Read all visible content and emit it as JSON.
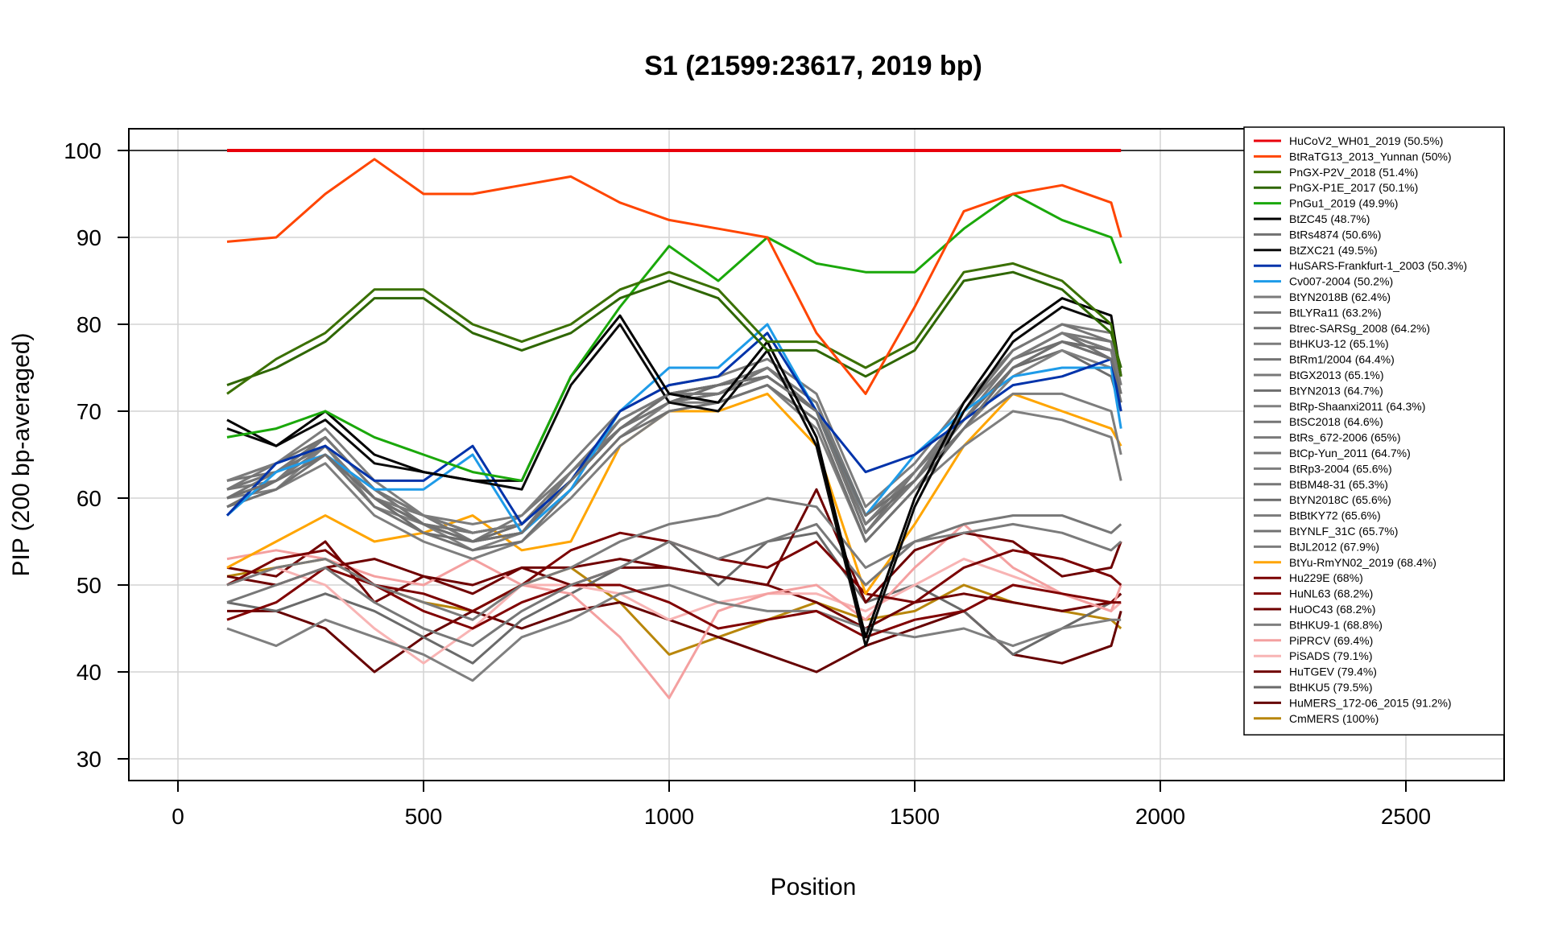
{
  "chart_data": {
    "type": "line",
    "title": "S1 (21599:23617, 2019 bp)",
    "xlabel": "Position",
    "ylabel": "PIP (200 bp-averaged)",
    "xlim": [
      -100,
      2700
    ],
    "ylim": [
      27.5,
      102.5
    ],
    "xticks": [
      0,
      500,
      1000,
      1500,
      2000,
      2500
    ],
    "yticks": [
      30,
      40,
      50,
      60,
      70,
      80,
      90,
      100
    ],
    "grid": true,
    "legend_position": "top-right",
    "reference_line": 100,
    "x": [
      100,
      200,
      300,
      400,
      500,
      600,
      700,
      800,
      900,
      1000,
      1100,
      1200,
      1300,
      1400,
      1500,
      1600,
      1700,
      1800,
      1900,
      1920
    ],
    "series": [
      {
        "name": "HuCoV2_WH01_2019 (50.5%)",
        "color": "#e8000b",
        "values": [
          100,
          100,
          100,
          100,
          100,
          100,
          100,
          100,
          100,
          100,
          100,
          100,
          100,
          100,
          100,
          100,
          100,
          100,
          100,
          100
        ]
      },
      {
        "name": "BtRaTG13_2013_Yunnan (50%)",
        "color": "#ff4500",
        "values": [
          89.5,
          90,
          95,
          99,
          95,
          95,
          96,
          97,
          94,
          92,
          91,
          90,
          79,
          72,
          82,
          93,
          95,
          96,
          94,
          90
        ]
      },
      {
        "name": "PnGX-P2V_2018 (51.4%)",
        "color": "#3a7000",
        "values": [
          72,
          76,
          79,
          84,
          84,
          80,
          78,
          80,
          84,
          86,
          84,
          78,
          78,
          75,
          78,
          86,
          87,
          85,
          80,
          74
        ]
      },
      {
        "name": "PnGX-P1E_2017 (50.1%)",
        "color": "#2e6600",
        "values": [
          73,
          75,
          78,
          83,
          83,
          79,
          77,
          79,
          83,
          85,
          83,
          77,
          77,
          74,
          77,
          85,
          86,
          84,
          79,
          75
        ]
      },
      {
        "name": "PnGu1_2019 (49.9%)",
        "color": "#1aa80a",
        "values": [
          67,
          68,
          70,
          67,
          65,
          63,
          62,
          74,
          82,
          89,
          85,
          90,
          87,
          86,
          86,
          91,
          95,
          92,
          90,
          87
        ]
      },
      {
        "name": "BtZC45 (48.7%)",
        "color": "#000000",
        "values": [
          69,
          66,
          70,
          65,
          63,
          62,
          62,
          74,
          81,
          72,
          71,
          78,
          67,
          44,
          60,
          71,
          79,
          83,
          81,
          74
        ]
      },
      {
        "name": "BtRs4874 (50.6%)",
        "color": "#707070",
        "values": [
          60,
          62,
          65,
          60,
          57,
          55,
          56,
          62,
          68,
          72,
          73,
          74,
          70,
          58,
          62,
          68,
          75,
          78,
          76,
          72
        ]
      },
      {
        "name": "BtZXC21 (49.5%)",
        "color": "#0a0a0a",
        "values": [
          68,
          66,
          69,
          64,
          63,
          62,
          61,
          73,
          80,
          71,
          70,
          77,
          66,
          43,
          59,
          70,
          78,
          82,
          80,
          74
        ]
      },
      {
        "name": "HuSARS-Frankfurt-1_2003 (50.3%)",
        "color": "#0033aa",
        "values": [
          58,
          64,
          66,
          62,
          62,
          66,
          57,
          62,
          70,
          73,
          74,
          79,
          70,
          63,
          65,
          69,
          73,
          74,
          76,
          70
        ]
      },
      {
        "name": "Cv007-2004 (50.2%)",
        "color": "#1e9be8",
        "values": [
          58,
          63,
          65,
          61,
          61,
          65,
          56,
          61,
          70,
          75,
          75,
          80,
          70,
          58,
          65,
          70,
          74,
          75,
          75,
          68
        ]
      },
      {
        "name": "BtYN2018B (62.4%)",
        "color": "#7a7a7a",
        "values": [
          60,
          62,
          66,
          60,
          58,
          56,
          57,
          63,
          69,
          72,
          73,
          75,
          71,
          57,
          63,
          69,
          76,
          79,
          77,
          73
        ]
      },
      {
        "name": "BtLYRa11 (63.2%)",
        "color": "#767676",
        "values": [
          61,
          63,
          67,
          61,
          57,
          55,
          56,
          62,
          68,
          71,
          72,
          74,
          70,
          56,
          62,
          70,
          77,
          80,
          78,
          74
        ]
      },
      {
        "name": "Btrec-SARSg_2008 (64.2%)",
        "color": "#727272",
        "values": [
          59,
          61,
          65,
          59,
          56,
          54,
          55,
          61,
          67,
          70,
          71,
          73,
          69,
          55,
          61,
          68,
          75,
          78,
          76,
          71
        ]
      },
      {
        "name": "BtHKU3-12 (65.1%)",
        "color": "#7c7c7c",
        "values": [
          62,
          64,
          68,
          62,
          58,
          57,
          58,
          64,
          70,
          73,
          74,
          76,
          72,
          59,
          64,
          71,
          77,
          80,
          79,
          75
        ]
      },
      {
        "name": "BtRm1/2004 (64.4%)",
        "color": "#747474",
        "values": [
          60,
          63,
          66,
          60,
          57,
          56,
          57,
          63,
          69,
          72,
          73,
          74,
          70,
          56,
          62,
          69,
          76,
          79,
          77,
          72
        ]
      },
      {
        "name": "BtGX2013 (65.1%)",
        "color": "#787878",
        "values": [
          61,
          62,
          67,
          61,
          58,
          55,
          56,
          63,
          68,
          72,
          72,
          75,
          71,
          58,
          63,
          70,
          76,
          79,
          78,
          73
        ]
      },
      {
        "name": "BtYN2013 (64.7%)",
        "color": "#6e6e6e",
        "values": [
          59,
          62,
          65,
          60,
          56,
          55,
          57,
          62,
          68,
          71,
          73,
          74,
          70,
          57,
          62,
          69,
          75,
          78,
          77,
          72
        ]
      },
      {
        "name": "BtRp-Shaanxi2011 (64.3%)",
        "color": "#808080",
        "values": [
          60,
          61,
          66,
          59,
          57,
          54,
          56,
          61,
          67,
          71,
          71,
          73,
          69,
          55,
          61,
          68,
          74,
          77,
          75,
          70
        ]
      },
      {
        "name": "BtSC2018 (64.6%)",
        "color": "#757575",
        "values": [
          62,
          63,
          67,
          61,
          58,
          56,
          57,
          62,
          69,
          72,
          72,
          75,
          71,
          58,
          63,
          70,
          76,
          79,
          77,
          73
        ]
      },
      {
        "name": "BtRs_672-2006 (65%)",
        "color": "#797979",
        "values": [
          61,
          64,
          66,
          60,
          58,
          55,
          58,
          63,
          68,
          71,
          73,
          74,
          70,
          57,
          62,
          69,
          75,
          78,
          77,
          72
        ]
      },
      {
        "name": "BtCp-Yun_2011 (64.7%)",
        "color": "#737373",
        "values": [
          60,
          62,
          65,
          61,
          57,
          56,
          57,
          62,
          68,
          72,
          72,
          75,
          70,
          56,
          63,
          70,
          76,
          79,
          76,
          71
        ]
      },
      {
        "name": "BtRp3-2004 (65.6%)",
        "color": "#7e7e7e",
        "values": [
          59,
          61,
          64,
          58,
          55,
          53,
          55,
          60,
          66,
          70,
          71,
          73,
          68,
          55,
          61,
          66,
          70,
          69,
          67,
          62
        ]
      },
      {
        "name": "BtBM48-31 (65.3%)",
        "color": "#777777",
        "values": [
          48,
          50,
          52,
          48,
          45,
          43,
          47,
          50,
          52,
          55,
          53,
          55,
          57,
          50,
          55,
          57,
          58,
          58,
          56,
          57
        ]
      },
      {
        "name": "BtYN2018C (65.6%)",
        "color": "#6c6c6c",
        "values": [
          61,
          63,
          66,
          60,
          57,
          55,
          57,
          62,
          68,
          71,
          72,
          74,
          70,
          57,
          62,
          69,
          75,
          77,
          74,
          70
        ]
      },
      {
        "name": "BtBtKY72 (65.6%)",
        "color": "#7b7b7b",
        "values": [
          50,
          52,
          53,
          50,
          48,
          46,
          50,
          52,
          55,
          57,
          58,
          60,
          59,
          52,
          55,
          56,
          57,
          56,
          54,
          55
        ]
      },
      {
        "name": "BtYNLF_31C (65.7%)",
        "color": "#717171",
        "values": [
          62,
          64,
          67,
          61,
          58,
          56,
          57,
          63,
          69,
          72,
          73,
          75,
          71,
          58,
          63,
          70,
          76,
          78,
          76,
          71
        ]
      },
      {
        "name": "BtJL2012 (67.9%)",
        "color": "#7d7d7d",
        "values": [
          60,
          62,
          66,
          60,
          57,
          55,
          56,
          62,
          68,
          71,
          72,
          74,
          70,
          56,
          62,
          68,
          72,
          72,
          70,
          65
        ]
      },
      {
        "name": "BtYu-RmYN02_2019 (68.4%)",
        "color": "#ffa500",
        "values": [
          52,
          55,
          58,
          55,
          56,
          58,
          54,
          55,
          66,
          70,
          70,
          72,
          66,
          49,
          57,
          66,
          72,
          70,
          68,
          66
        ]
      },
      {
        "name": "Hu229E (68%)",
        "color": "#7a0000",
        "values": [
          50,
          53,
          54,
          50,
          49,
          47,
          50,
          54,
          56,
          55,
          53,
          52,
          55,
          49,
          48,
          52,
          54,
          53,
          51,
          50
        ]
      },
      {
        "name": "HuNL63 (68.2%)",
        "color": "#800000",
        "values": [
          46,
          48,
          52,
          50,
          47,
          45,
          48,
          50,
          50,
          48,
          45,
          46,
          47,
          44,
          46,
          47,
          50,
          49,
          48,
          48
        ]
      },
      {
        "name": "HuOC43 (68.2%)",
        "color": "#6e0000",
        "values": [
          51,
          50,
          52,
          53,
          51,
          50,
          52,
          50,
          52,
          52,
          51,
          50,
          61,
          48,
          54,
          56,
          55,
          51,
          52,
          55
        ]
      },
      {
        "name": "BtHKU9-1 (68.8%)",
        "color": "#7f7f7f",
        "values": [
          45,
          43,
          46,
          44,
          42,
          39,
          44,
          46,
          49,
          50,
          48,
          47,
          47,
          45,
          44,
          45,
          43,
          45,
          46,
          46
        ]
      },
      {
        "name": "PiPRCV (69.4%)",
        "color": "#f4a0a0",
        "values": [
          53,
          54,
          53,
          51,
          50,
          53,
          50,
          49,
          44,
          37,
          47,
          49,
          50,
          46,
          52,
          57,
          52,
          49,
          47,
          50
        ]
      },
      {
        "name": "PiSADS (79.1%)",
        "color": "#f8b4b4",
        "values": [
          50,
          52,
          50,
          45,
          41,
          45,
          50,
          50,
          49,
          46,
          48,
          49,
          49,
          47,
          50,
          53,
          51,
          49,
          47,
          48
        ]
      },
      {
        "name": "HuTGEV (79.4%)",
        "color": "#700000",
        "values": [
          52,
          51,
          55,
          48,
          51,
          49,
          52,
          52,
          53,
          52,
          51,
          50,
          48,
          45,
          48,
          49,
          48,
          47,
          48,
          49
        ]
      },
      {
        "name": "BtHKU5 (79.5%)",
        "color": "#6a6a6a",
        "values": [
          48,
          47,
          49,
          47,
          44,
          41,
          46,
          49,
          52,
          55,
          50,
          55,
          56,
          48,
          50,
          47,
          42,
          45,
          48,
          49
        ]
      },
      {
        "name": "HuMERS_172-06_2015 (91.2%)",
        "color": "#660000",
        "values": [
          47,
          47,
          45,
          40,
          44,
          47,
          45,
          47,
          48,
          46,
          44,
          42,
          40,
          43,
          45,
          47,
          42,
          41,
          43,
          47
        ]
      },
      {
        "name": "CmMERS (100%)",
        "color": "#b8860b",
        "values": [
          51,
          52,
          53,
          50,
          48,
          47,
          50,
          52,
          48,
          42,
          44,
          46,
          48,
          46,
          47,
          50,
          48,
          47,
          46,
          45
        ]
      }
    ]
  }
}
